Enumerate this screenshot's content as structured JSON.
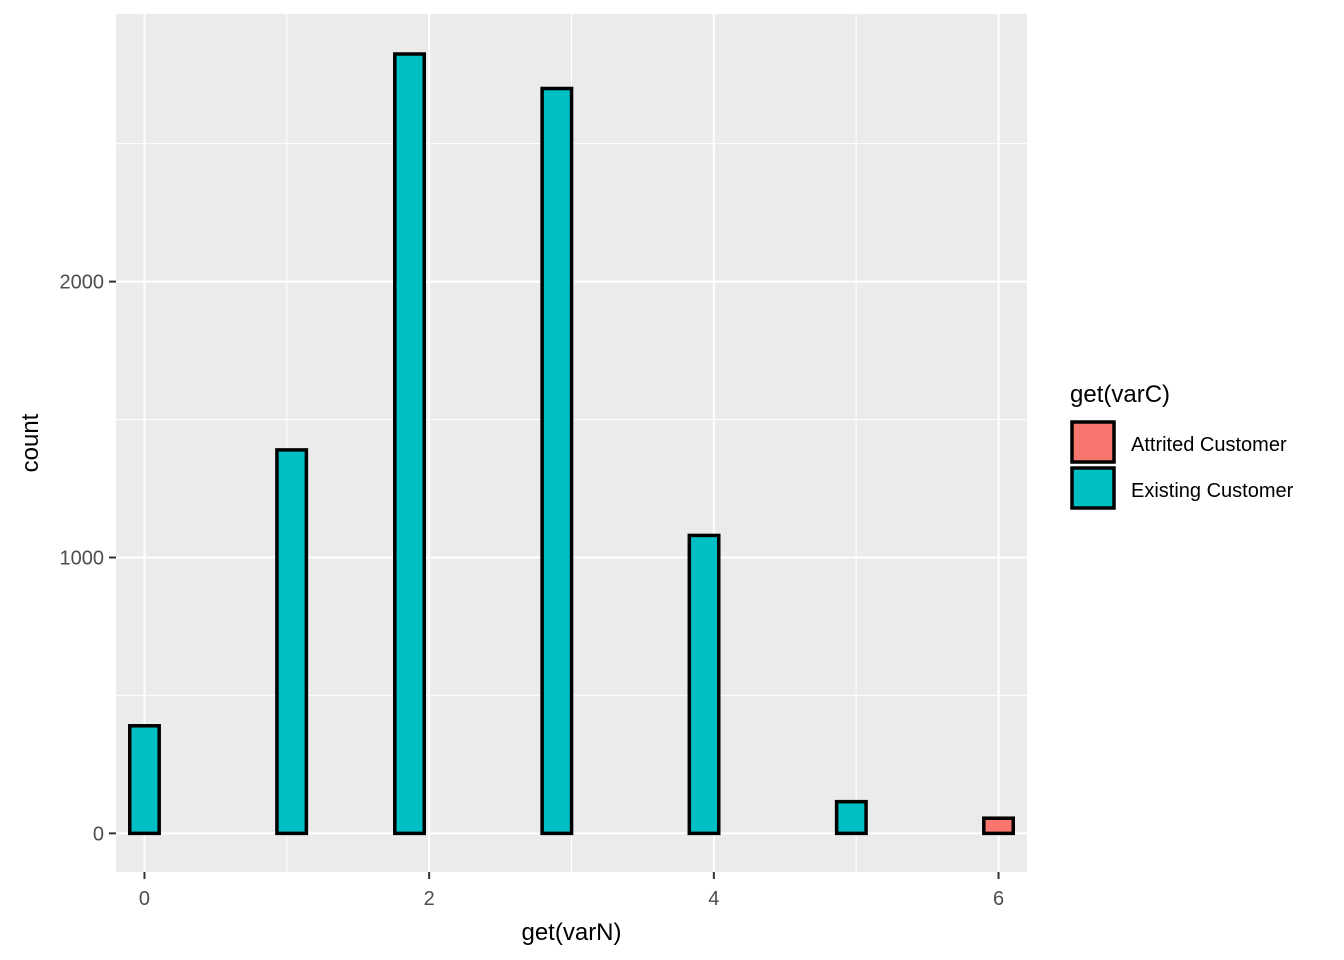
{
  "chart_data": {
    "type": "bar",
    "xlabel": "get(varN)",
    "ylabel": "count",
    "xlim": [
      -0.2,
      6.2
    ],
    "ylim": [
      -140,
      2970
    ],
    "x_ticks": [
      0,
      2,
      4,
      6
    ],
    "x_tick_labels": [
      "0",
      "2",
      "4",
      "6"
    ],
    "y_ticks": [
      0,
      1000,
      2000
    ],
    "y_tick_labels": [
      "0",
      "1000",
      "2000"
    ],
    "y_minor_ticks": [
      500,
      1500,
      2500
    ],
    "grid": true,
    "bin_width": 0.2069,
    "legend": {
      "title": "get(varC)",
      "position": "right",
      "entries": [
        {
          "label": "Attrited Customer",
          "color": "#F8766D"
        },
        {
          "label": "Existing Customer",
          "color": "#00BFC4"
        }
      ]
    },
    "series": [
      {
        "name": "Attrited Customer",
        "color": "#F8766D",
        "x": [
          0,
          1.034,
          1.862,
          2.897,
          3.931,
          4.966,
          6
        ],
        "values": [
          0,
          0,
          0,
          0,
          0,
          0,
          55
        ]
      },
      {
        "name": "Existing Customer",
        "color": "#00BFC4",
        "x": [
          0,
          1.034,
          1.862,
          2.897,
          3.931,
          4.966,
          6
        ],
        "values": [
          390,
          1390,
          2825,
          2700,
          1080,
          115,
          0
        ]
      }
    ]
  }
}
